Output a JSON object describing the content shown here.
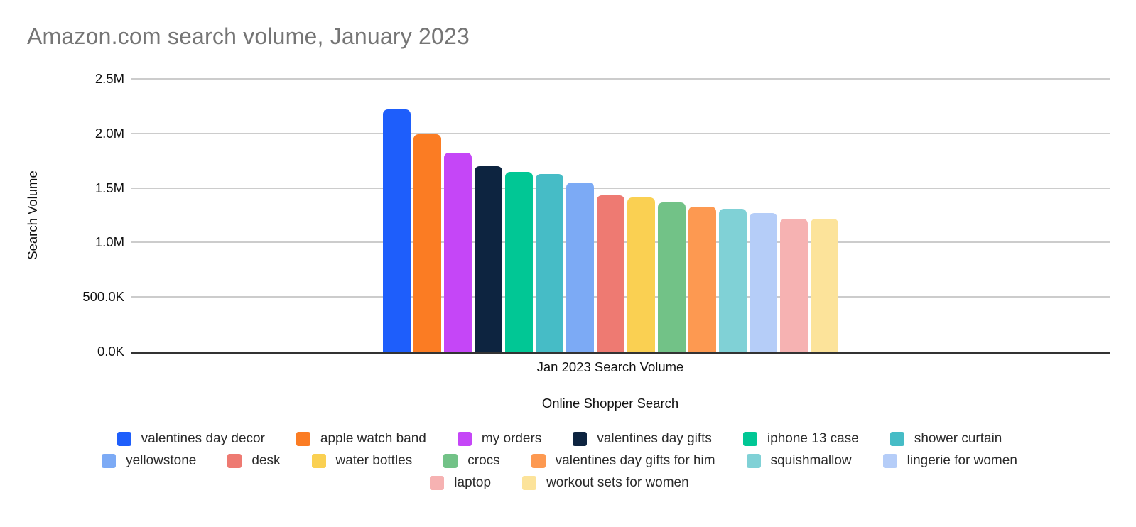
{
  "chart_data": {
    "type": "bar",
    "title": "Amazon.com search volume, January 2023",
    "xlabel": "Online Shopper Search",
    "ylabel": "Search Volume",
    "categories": [
      "Jan 2023 Search Volume"
    ],
    "x_tick_label": "Jan 2023 Search Volume",
    "ylim": [
      0,
      2500000
    ],
    "grid": true,
    "legend_position": "bottom",
    "background_color": "#ffffff",
    "title_color": "#757575",
    "gridline_color": "#cccccc",
    "axis_line_color": "#333333",
    "y_ticks": [
      {
        "value": 2500000,
        "label": "2.5M"
      },
      {
        "value": 2000000,
        "label": "2.0M"
      },
      {
        "value": 1500000,
        "label": "1.5M"
      },
      {
        "value": 1000000,
        "label": "1.0M"
      },
      {
        "value": 500000,
        "label": "500.0K"
      },
      {
        "value": 0,
        "label": "0.0K"
      }
    ],
    "series": [
      {
        "name": "valentines day decor",
        "value": 2220000,
        "color": "#1e5efb"
      },
      {
        "name": "apple watch band",
        "value": 1990000,
        "color": "#fb7c23"
      },
      {
        "name": "my orders",
        "value": 1820000,
        "color": "#c546f7"
      },
      {
        "name": "valentines day gifts",
        "value": 1700000,
        "color": "#0d2440"
      },
      {
        "name": "iphone 13 case",
        "value": 1650000,
        "color": "#01c795"
      },
      {
        "name": "shower curtain",
        "value": 1630000,
        "color": "#46bcc6"
      },
      {
        "name": "yellowstone",
        "value": 1550000,
        "color": "#7caaf5"
      },
      {
        "name": "desk",
        "value": 1430000,
        "color": "#ee7a72"
      },
      {
        "name": "water bottles",
        "value": 1410000,
        "color": "#fad052"
      },
      {
        "name": "crocs",
        "value": 1370000,
        "color": "#72c287"
      },
      {
        "name": "valentines day gifts for him",
        "value": 1330000,
        "color": "#fd9951"
      },
      {
        "name": "squishmallow",
        "value": 1310000,
        "color": "#80d1d6"
      },
      {
        "name": "lingerie for women",
        "value": 1270000,
        "color": "#b5cdf8"
      },
      {
        "name": "laptop",
        "value": 1220000,
        "color": "#f6b2b2"
      },
      {
        "name": "workout sets for women",
        "value": 1220000,
        "color": "#fce39a"
      }
    ],
    "legend_rows": [
      [
        0,
        1,
        2,
        3,
        4,
        5
      ],
      [
        6,
        7,
        8,
        9,
        10,
        11,
        12
      ],
      [
        13,
        14
      ]
    ]
  }
}
